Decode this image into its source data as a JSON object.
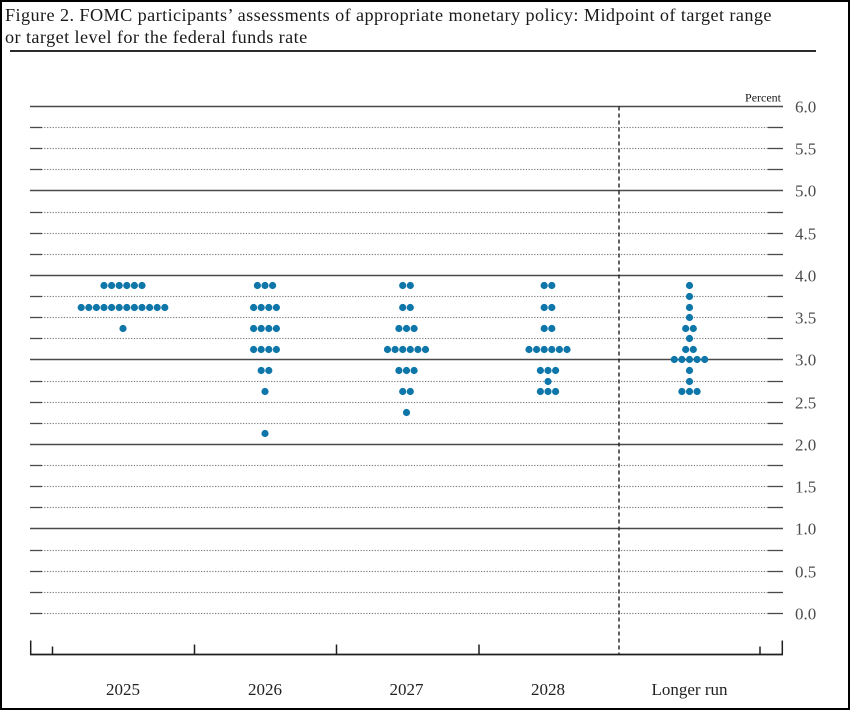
{
  "title": {
    "line1": "Figure 2. FOMC participants’ assessments of appropriate monetary policy: Midpoint of target range",
    "line2": "or target level for the federal funds rate"
  },
  "chart_data": {
    "type": "scatter",
    "subtype": "fomc-dot-plot",
    "unit_label": "Percent",
    "categories": [
      "2025",
      "2026",
      "2027",
      "2028",
      "Longer run"
    ],
    "y_axis": {
      "min": 0.0,
      "max": 6.0,
      "label_step": 0.5,
      "grid_step": 0.25,
      "solid_line_values": [
        1.0,
        2.0,
        3.0,
        4.0,
        5.0,
        6.0
      ],
      "tick_labels": [
        "0.0",
        "0.5",
        "1.0",
        "1.5",
        "2.0",
        "2.5",
        "3.0",
        "3.5",
        "4.0",
        "4.5",
        "5.0",
        "5.5",
        "6.0"
      ]
    },
    "series": [
      {
        "category": "2025",
        "dots": [
          {
            "value": 3.875,
            "count": 6
          },
          {
            "value": 3.625,
            "count": 12
          },
          {
            "value": 3.375,
            "count": 1
          }
        ]
      },
      {
        "category": "2026",
        "dots": [
          {
            "value": 3.875,
            "count": 3
          },
          {
            "value": 3.625,
            "count": 4
          },
          {
            "value": 3.375,
            "count": 4
          },
          {
            "value": 3.125,
            "count": 4
          },
          {
            "value": 2.875,
            "count": 2
          },
          {
            "value": 2.625,
            "count": 1
          },
          {
            "value": 2.125,
            "count": 1
          }
        ]
      },
      {
        "category": "2027",
        "dots": [
          {
            "value": 3.875,
            "count": 2
          },
          {
            "value": 3.625,
            "count": 2
          },
          {
            "value": 3.375,
            "count": 3
          },
          {
            "value": 3.125,
            "count": 6
          },
          {
            "value": 2.875,
            "count": 3
          },
          {
            "value": 2.625,
            "count": 2
          },
          {
            "value": 2.375,
            "count": 1
          }
        ]
      },
      {
        "category": "2028",
        "dots": [
          {
            "value": 3.875,
            "count": 2
          },
          {
            "value": 3.625,
            "count": 2
          },
          {
            "value": 3.375,
            "count": 2
          },
          {
            "value": 3.125,
            "count": 6
          },
          {
            "value": 2.875,
            "count": 3
          },
          {
            "value": 2.75,
            "count": 1
          },
          {
            "value": 2.625,
            "count": 3
          }
        ]
      },
      {
        "category": "Longer run",
        "dots": [
          {
            "value": 3.875,
            "count": 1
          },
          {
            "value": 3.75,
            "count": 1
          },
          {
            "value": 3.625,
            "count": 1
          },
          {
            "value": 3.5,
            "count": 1
          },
          {
            "value": 3.375,
            "count": 2
          },
          {
            "value": 3.25,
            "count": 1
          },
          {
            "value": 3.125,
            "count": 2
          },
          {
            "value": 3.0,
            "count": 5
          },
          {
            "value": 2.875,
            "count": 1
          },
          {
            "value": 2.75,
            "count": 1
          },
          {
            "value": 2.625,
            "count": 3
          }
        ]
      }
    ]
  },
  "colors": {
    "dot": "#0f76aa",
    "solid_grid": "#4a4a4a",
    "dotted_grid": "#7f7f7f",
    "axis": "#1f1f1f",
    "y_label": "#4c4c4c",
    "x_label": "#222222",
    "percent_label": "#1a1a1a",
    "title_text": "#1a1a1a"
  }
}
